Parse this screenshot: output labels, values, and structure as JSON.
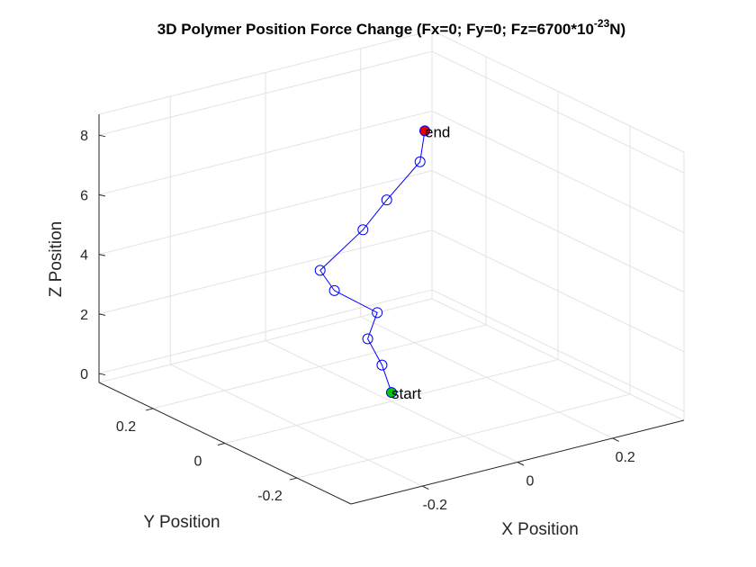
{
  "chart_data": {
    "type": "line3d",
    "title": "3D Polymer Position Force Change (Fx=0; Fy=0; Fz=6700*10",
    "title_exponent": "-23",
    "title_suffix": "N)",
    "xlabel": "X Position",
    "ylabel": "Y Position",
    "zlabel": "Z Position",
    "xlim": [
      -0.35,
      0.35
    ],
    "ylim": [
      -0.35,
      0.35
    ],
    "zlim": [
      -0.3,
      8.7
    ],
    "x_ticks": [
      {
        "v": -0.2,
        "label": "-0.2"
      },
      {
        "v": 0,
        "label": "0"
      },
      {
        "v": 0.2,
        "label": "0.2"
      }
    ],
    "y_ticks": [
      {
        "v": -0.2,
        "label": "-0.2"
      },
      {
        "v": 0,
        "label": "0"
      },
      {
        "v": 0.2,
        "label": "0.2"
      }
    ],
    "z_ticks": [
      {
        "v": 0,
        "label": "0"
      },
      {
        "v": 2,
        "label": "2"
      },
      {
        "v": 4,
        "label": "4"
      },
      {
        "v": 6,
        "label": "6"
      },
      {
        "v": 8,
        "label": "8"
      }
    ],
    "grid": true,
    "line_color": "#0000ff",
    "start_color": "#00cc00",
    "end_color": "#e60000",
    "points": [
      {
        "x": 0,
        "y": 0,
        "z": 0
      },
      {
        "x": -0.02,
        "y": 0,
        "z": 1
      },
      {
        "x": -0.05,
        "y": 0,
        "z": 2
      },
      {
        "x": -0.03,
        "y": 0,
        "z": 2.8
      },
      {
        "x": -0.12,
        "y": 0,
        "z": 3.9
      },
      {
        "x": -0.15,
        "y": 0,
        "z": 4.7
      },
      {
        "x": -0.06,
        "y": 0,
        "z": 5.7
      },
      {
        "x": -0.01,
        "y": 0,
        "z": 6.5
      },
      {
        "x": 0.06,
        "y": 0,
        "z": 7.5
      },
      {
        "x": 0.07,
        "y": 0,
        "z": 8.5
      }
    ],
    "start_label": "start",
    "end_label": "end"
  }
}
